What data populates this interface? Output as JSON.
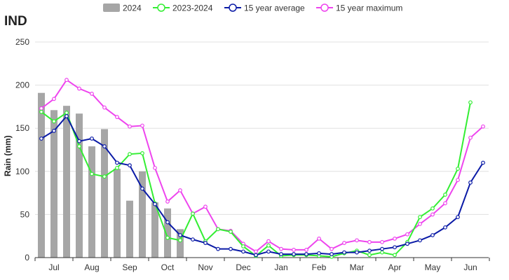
{
  "chart_data": {
    "type": "bar",
    "title": "IND",
    "xlabel": "",
    "ylabel": "Rain (mm)",
    "ylim": [
      0,
      250
    ],
    "yticks": [
      0,
      50,
      100,
      150,
      200,
      250
    ],
    "grid": "horizontal",
    "legend_position": "top",
    "x_labels": [
      "Jul",
      "Aug",
      "Sep",
      "Oct",
      "Nov",
      "Dec",
      "Jan",
      "Feb",
      "Mar",
      "Apr",
      "May",
      "Jun"
    ],
    "series": [
      {
        "name": "2024",
        "type": "bar",
        "color": "#a6a6a6",
        "values": [
          191,
          171,
          176,
          167,
          129,
          149,
          103,
          66,
          100,
          64,
          57,
          33
        ]
      },
      {
        "name": "2023-2024",
        "type": "line",
        "color": "#33ee33",
        "values": [
          169,
          158,
          168,
          129,
          97,
          94,
          104,
          120,
          121,
          63,
          23,
          20,
          51,
          19,
          33,
          30,
          13,
          2,
          14,
          2,
          3,
          3,
          2,
          1,
          5,
          8,
          3,
          6,
          3,
          18,
          47,
          57,
          73,
          103,
          180
        ]
      },
      {
        "name": "15 year average",
        "type": "line",
        "color": "#0a1aa6",
        "values": [
          138,
          147,
          164,
          135,
          138,
          129,
          110,
          107,
          80,
          62,
          41,
          26,
          21,
          17,
          10,
          10,
          7,
          3,
          7,
          4,
          4,
          4,
          5,
          4,
          6,
          6,
          8,
          10,
          12,
          16,
          20,
          26,
          35,
          47,
          87,
          110
        ]
      },
      {
        "name": "15 year maximum",
        "type": "line",
        "color": "#ee44ee",
        "values": [
          173,
          184,
          206,
          196,
          190,
          174,
          163,
          152,
          153,
          104,
          65,
          78,
          51,
          59,
          33,
          31,
          16,
          7,
          19,
          10,
          9,
          9,
          22,
          10,
          17,
          20,
          18,
          18,
          22,
          27,
          39,
          50,
          63,
          90,
          139,
          152
        ]
      }
    ]
  }
}
